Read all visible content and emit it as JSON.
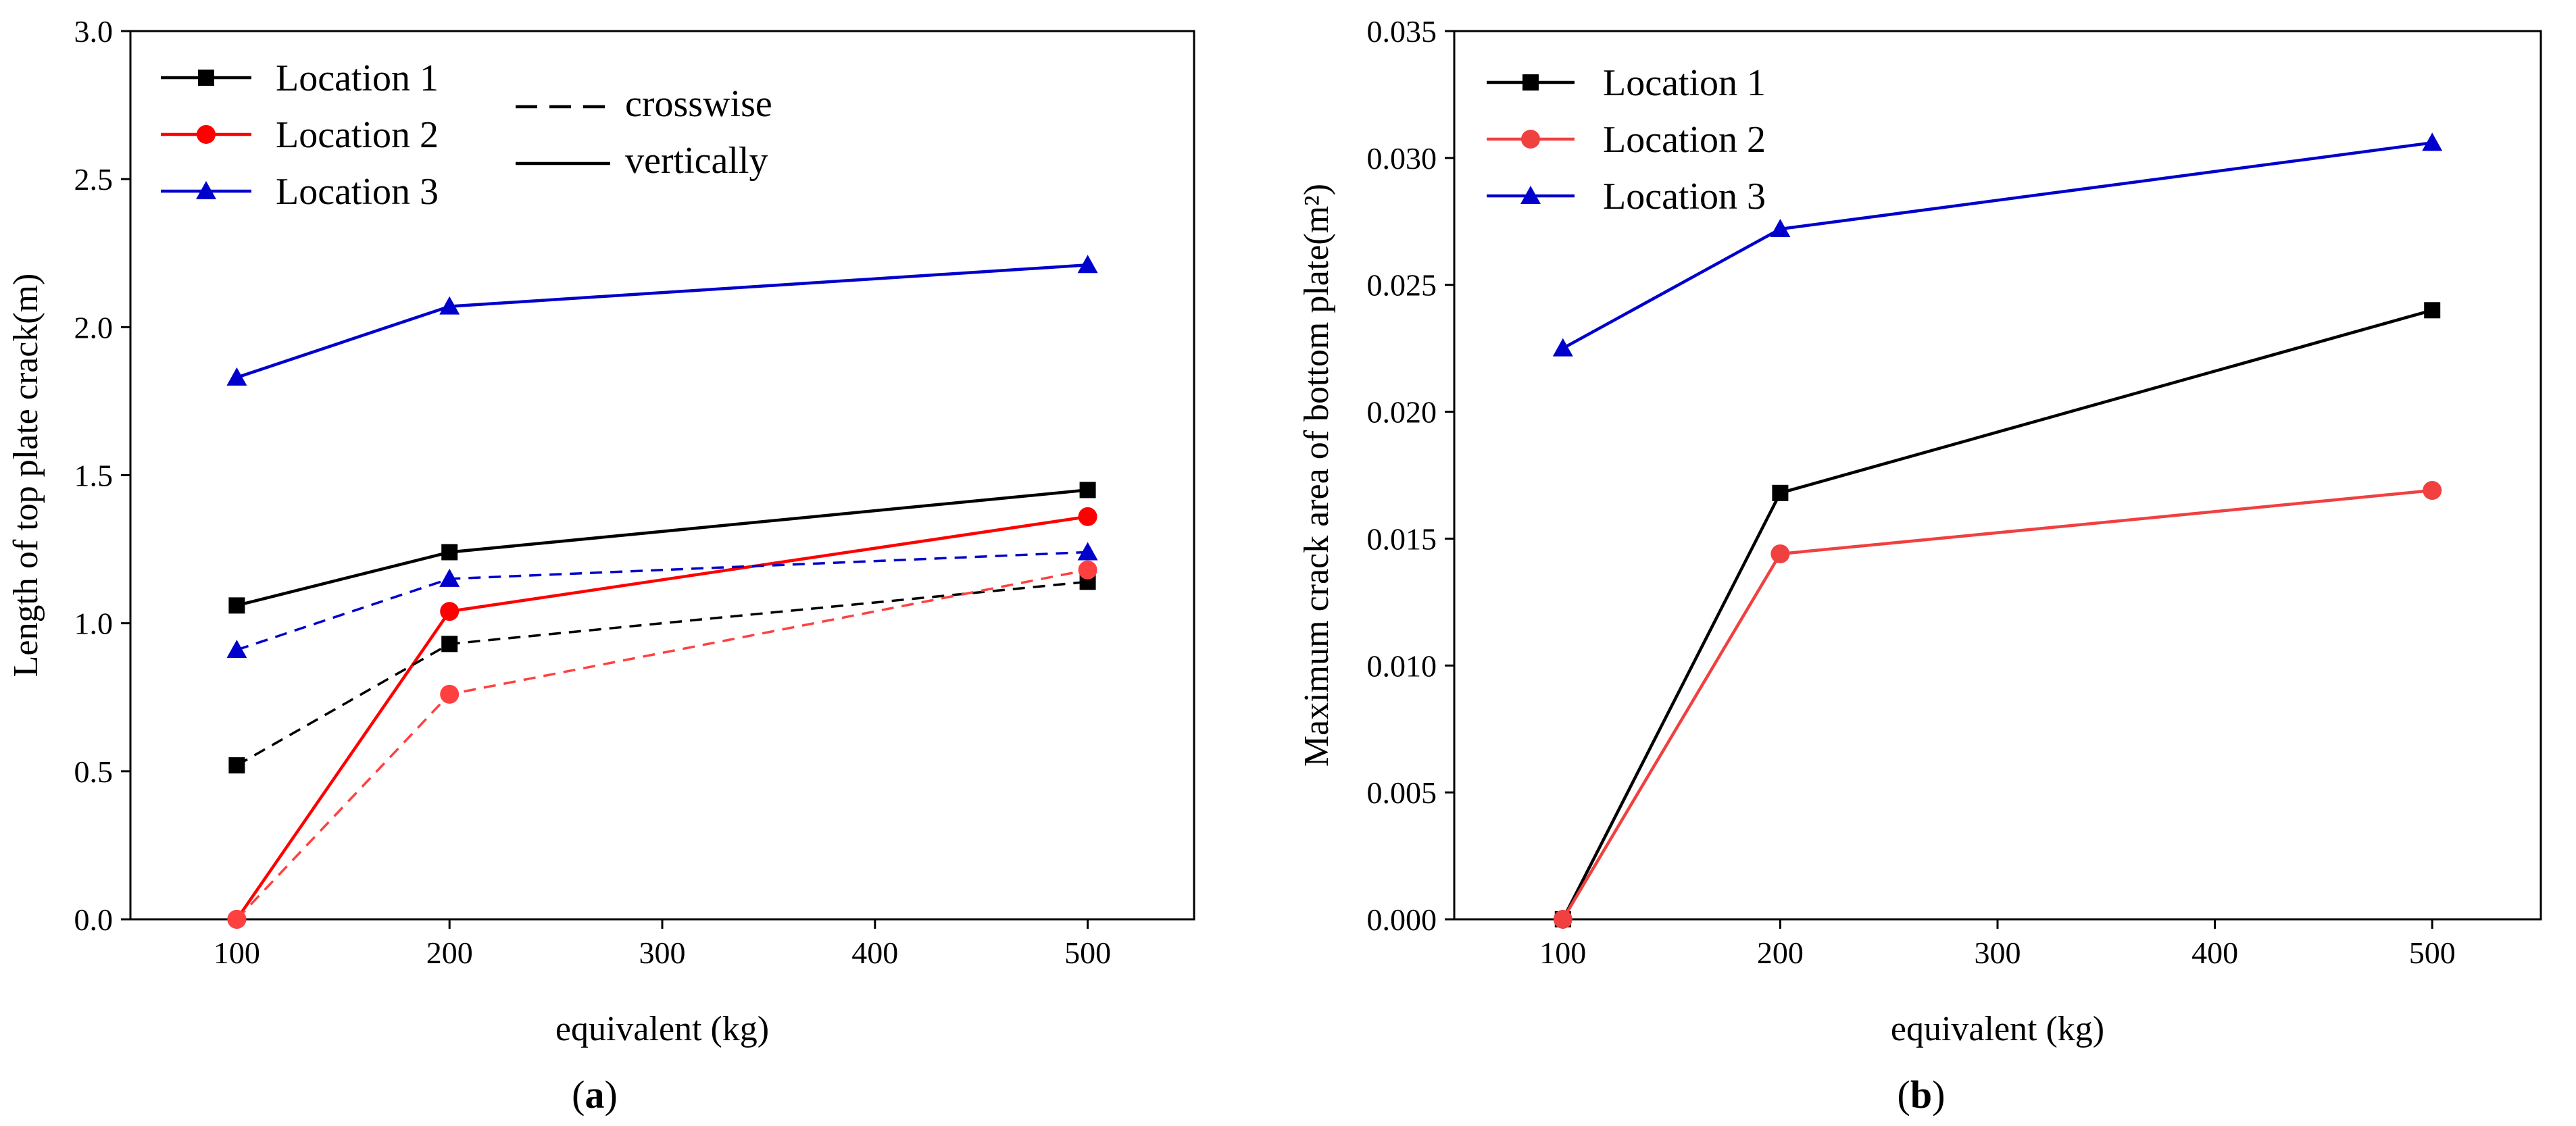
{
  "chart_data": [
    {
      "type": "line",
      "panel_label": "a",
      "xlabel": "equivalent (kg)",
      "ylabel": "Length of top plate crack(m)",
      "xlim": [
        50,
        550
      ],
      "ylim": [
        0,
        3.0
      ],
      "xticks": [
        100,
        200,
        300,
        400,
        500
      ],
      "yticks": [
        "0.0",
        "0.5",
        "1.0",
        "1.5",
        "2.0",
        "2.5",
        "3.0"
      ],
      "legend": [
        "Location 1",
        "Location 2",
        "Location 3"
      ],
      "style_legend": [
        {
          "label": "crosswise",
          "dash": "dashed"
        },
        {
          "label": "vertically",
          "dash": "solid"
        }
      ],
      "series": [
        {
          "name": "Location 1",
          "orientation": "vertically",
          "marker": "square",
          "color": "#000000",
          "x": [
            100,
            200,
            500
          ],
          "values": [
            1.06,
            1.24,
            1.45
          ]
        },
        {
          "name": "Location 2",
          "orientation": "vertically",
          "marker": "circle",
          "color": "#ff0000",
          "x": [
            100,
            200,
            500
          ],
          "values": [
            0.0,
            1.04,
            1.36
          ]
        },
        {
          "name": "Location 3",
          "orientation": "vertically",
          "marker": "triangle",
          "color": "#0000cc",
          "x": [
            100,
            200,
            500
          ],
          "values": [
            1.83,
            2.07,
            2.21
          ]
        },
        {
          "name": "Location 1",
          "orientation": "crosswise",
          "marker": "square",
          "color": "#000000",
          "x": [
            100,
            200,
            500
          ],
          "values": [
            0.52,
            0.93,
            1.14
          ]
        },
        {
          "name": "Location 2",
          "orientation": "crosswise",
          "marker": "circle",
          "color": "#ff4040",
          "x": [
            100,
            200,
            500
          ],
          "values": [
            0.0,
            0.76,
            1.18
          ]
        },
        {
          "name": "Location 3",
          "orientation": "crosswise",
          "marker": "triangle",
          "color": "#0000cc",
          "x": [
            100,
            200,
            500
          ],
          "values": [
            0.91,
            1.15,
            1.24
          ]
        }
      ]
    },
    {
      "type": "line",
      "panel_label": "b",
      "xlabel": "equivalent (kg)",
      "ylabel": "Maximum crack area of bottom plate(m²)",
      "xlim": [
        50,
        550
      ],
      "ylim": [
        0,
        0.035
      ],
      "xticks": [
        100,
        200,
        300,
        400,
        500
      ],
      "yticks": [
        "0.000",
        "0.005",
        "0.010",
        "0.015",
        "0.020",
        "0.025",
        "0.030",
        "0.035"
      ],
      "legend": [
        "Location 1",
        "Location 2",
        "Location 3"
      ],
      "series": [
        {
          "name": "Location 1",
          "marker": "square",
          "color": "#000000",
          "x": [
            100,
            200,
            500
          ],
          "values": [
            0.0,
            0.0168,
            0.024
          ]
        },
        {
          "name": "Location 2",
          "marker": "circle",
          "color": "#f04040",
          "x": [
            100,
            200,
            500
          ],
          "values": [
            0.0,
            0.0144,
            0.0169
          ]
        },
        {
          "name": "Location 3",
          "marker": "triangle",
          "color": "#0000cc",
          "x": [
            100,
            200,
            500
          ],
          "values": [
            0.0225,
            0.0272,
            0.0306
          ]
        }
      ]
    }
  ]
}
